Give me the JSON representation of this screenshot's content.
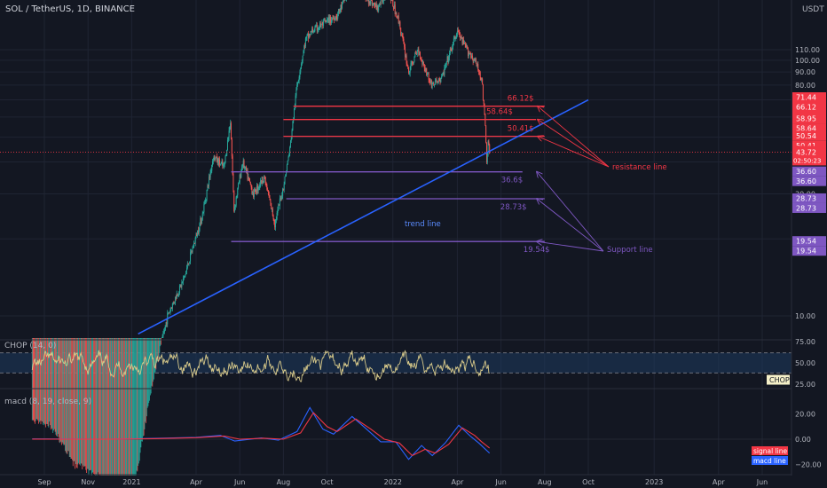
{
  "header": {
    "symbol": "SOL / TetherUS, 1D, BINANCE",
    "currency": "USDT"
  },
  "colors": {
    "background": "#131722",
    "grid": "#1f2433",
    "up": "#26a69a",
    "down": "#ef5350",
    "resistance": "#f23645",
    "support": "#7e57c2",
    "trend": "#2962ff",
    "chop": "#d7c98a",
    "macd": "#2962ff",
    "signal": "#f23645"
  },
  "x_axis": {
    "ticks": [
      "Sep",
      "Nov",
      "2021",
      "Apr",
      "Jun",
      "Aug",
      "Oct",
      "2022",
      "Apr",
      "Jun",
      "Aug",
      "Oct",
      "2023",
      "Apr",
      "Jun"
    ]
  },
  "chart_data": [
    {
      "type": "candlestick",
      "scale": "log",
      "y_ticks": [
        110,
        100,
        90,
        80,
        70,
        60,
        50,
        40,
        30,
        20,
        10
      ],
      "y_tick_labels": [
        "110.00",
        "100.00",
        "90.00",
        "80.00",
        "70.00",
        "60.00",
        "50.00",
        "40.00",
        "30.00",
        "20.00",
        "10.00"
      ],
      "ylim": [
        8,
        125
      ],
      "series_path": [
        {
          "t": "2020-08-15",
          "v": 3.8
        },
        {
          "t": "2020-09-10",
          "v": 3.6
        },
        {
          "t": "2020-10-10",
          "v": 2.6
        },
        {
          "t": "2020-11-15",
          "v": 2.3
        },
        {
          "t": "2020-12-10",
          "v": 1.8
        },
        {
          "t": "2021-01-01",
          "v": 1.8
        },
        {
          "t": "2021-01-25",
          "v": 4.5
        },
        {
          "t": "2021-02-20",
          "v": 10
        },
        {
          "t": "2021-03-15",
          "v": 14
        },
        {
          "t": "2021-04-10",
          "v": 25
        },
        {
          "t": "2021-04-25",
          "v": 42
        },
        {
          "t": "2021-05-10",
          "v": 38
        },
        {
          "t": "2021-05-19",
          "v": 58
        },
        {
          "t": "2021-05-24",
          "v": 26
        },
        {
          "t": "2021-06-05",
          "v": 40
        },
        {
          "t": "2021-06-20",
          "v": 30
        },
        {
          "t": "2021-07-05",
          "v": 35
        },
        {
          "t": "2021-07-20",
          "v": 23
        },
        {
          "t": "2021-08-01",
          "v": 32
        },
        {
          "t": "2021-08-10",
          "v": 45
        },
        {
          "t": "2021-08-20",
          "v": 80
        },
        {
          "t": "2021-09-01",
          "v": 120
        },
        {
          "t": "2021-09-10",
          "v": 130
        },
        {
          "t": "2021-10-15",
          "v": 150
        },
        {
          "t": "2021-11-06",
          "v": 200
        },
        {
          "t": "2021-12-10",
          "v": 160
        },
        {
          "t": "2021-12-25",
          "v": 190
        },
        {
          "t": "2022-01-10",
          "v": 140
        },
        {
          "t": "2022-01-23",
          "v": 90
        },
        {
          "t": "2022-02-05",
          "v": 110
        },
        {
          "t": "2022-02-24",
          "v": 80
        },
        {
          "t": "2022-03-10",
          "v": 85
        },
        {
          "t": "2022-04-01",
          "v": 130
        },
        {
          "t": "2022-04-10",
          "v": 115
        },
        {
          "t": "2022-04-25",
          "v": 100
        },
        {
          "t": "2022-05-05",
          "v": 85
        },
        {
          "t": "2022-05-10",
          "v": 55
        },
        {
          "t": "2022-05-12",
          "v": 40
        },
        {
          "t": "2022-05-14",
          "v": 48
        },
        {
          "t": "2022-05-16",
          "v": 43.72
        }
      ],
      "resistance_levels": [
        {
          "value": 66.12,
          "label": "66.12$",
          "from": "2021-08-15",
          "to": "2022-08-01"
        },
        {
          "value": 58.64,
          "label": "58.64$",
          "from": "2021-08-01",
          "to": "2022-07-20"
        },
        {
          "value": 50.41,
          "label": "50.41$",
          "from": "2021-08-01",
          "to": "2022-08-01"
        }
      ],
      "support_levels": [
        {
          "value": 36.6,
          "label": "36.6$",
          "from": "2021-05-20",
          "to": "2022-07-01"
        },
        {
          "value": 28.73,
          "label": "28.73$",
          "from": "2021-08-05",
          "to": "2022-08-01"
        },
        {
          "value": 19.54,
          "label": "19.54$",
          "from": "2021-05-20",
          "to": "2022-08-01"
        }
      ],
      "trend_line": {
        "label": "trend line",
        "from": {
          "t": "2021-01-10",
          "v": 8.5
        },
        "to": {
          "t": "2022-10-01",
          "v": 70
        }
      },
      "annotations": [
        {
          "text": "resistance line",
          "targets": [
            66.12,
            58.64,
            50.41
          ]
        },
        {
          "text": "Support line",
          "targets": [
            36.6,
            28.73,
            19.54
          ]
        }
      ],
      "price_labels": [
        {
          "value": 71.44,
          "text": "71.44",
          "kind": "resistance"
        },
        {
          "value": 66.12,
          "text": "66.12",
          "kind": "resistance"
        },
        {
          "value": 66.09,
          "text": "66.09",
          "kind": "resistance"
        },
        {
          "value": 58.95,
          "text": "58.95",
          "kind": "resistance"
        },
        {
          "value": 58.64,
          "text": "58.64",
          "kind": "resistance"
        },
        {
          "value": 50.54,
          "text": "50.54",
          "kind": "resistance"
        },
        {
          "value": 50.41,
          "text": "50.41",
          "kind": "resistance"
        },
        {
          "value": 36.6,
          "text": "36.60",
          "kind": "support"
        },
        {
          "value": 36.6,
          "text": "36.60",
          "kind": "support"
        },
        {
          "value": 28.73,
          "text": "28.73",
          "kind": "support"
        },
        {
          "value": 28.73,
          "text": "28.73",
          "kind": "support"
        },
        {
          "value": 19.54,
          "text": "19.54",
          "kind": "support"
        },
        {
          "value": 19.54,
          "text": "19.54",
          "kind": "support"
        }
      ],
      "current_price": {
        "value": 43.72,
        "text": "43.72",
        "countdown": "02:50:23"
      }
    },
    {
      "type": "line",
      "title": "CHOP (14, 0)",
      "y_ticks": [
        75,
        50,
        25
      ],
      "y_tick_labels": [
        "75.00",
        "50.00",
        "25.00"
      ],
      "ylim": [
        22,
        80
      ],
      "band": [
        38.2,
        61.8
      ],
      "mean": 48,
      "amplitude": 14,
      "last": {
        "value": 38,
        "text": "CHOP"
      }
    },
    {
      "type": "line",
      "title": "macd (8, 19, close, 9)",
      "y_ticks": [
        20,
        0,
        -20
      ],
      "y_tick_labels": [
        "20.00",
        "0.00",
        "−20.00"
      ],
      "ylim": [
        -24,
        28
      ],
      "series": [
        {
          "name": "macd line",
          "points": [
            {
              "t": "2020-08-15",
              "v": 0.2
            },
            {
              "t": "2020-12-01",
              "v": 0
            },
            {
              "t": "2021-02-01",
              "v": 0.6
            },
            {
              "t": "2021-04-01",
              "v": 1.5
            },
            {
              "t": "2021-05-05",
              "v": 3
            },
            {
              "t": "2021-05-25",
              "v": -1.5
            },
            {
              "t": "2021-07-01",
              "v": 1
            },
            {
              "t": "2021-07-25",
              "v": -0.8
            },
            {
              "t": "2021-08-20",
              "v": 6
            },
            {
              "t": "2021-09-07",
              "v": 25
            },
            {
              "t": "2021-09-25",
              "v": 8
            },
            {
              "t": "2021-10-10",
              "v": 4
            },
            {
              "t": "2021-11-05",
              "v": 18
            },
            {
              "t": "2021-11-25",
              "v": 8
            },
            {
              "t": "2021-12-15",
              "v": -2
            },
            {
              "t": "2022-01-05",
              "v": -2
            },
            {
              "t": "2022-01-23",
              "v": -16
            },
            {
              "t": "2022-02-10",
              "v": -5
            },
            {
              "t": "2022-02-25",
              "v": -13
            },
            {
              "t": "2022-03-15",
              "v": -3
            },
            {
              "t": "2022-04-03",
              "v": 11
            },
            {
              "t": "2022-04-20",
              "v": 2
            },
            {
              "t": "2022-05-01",
              "v": -3
            },
            {
              "t": "2022-05-16",
              "v": -11
            }
          ]
        },
        {
          "name": "signal line",
          "points": [
            {
              "t": "2020-08-15",
              "v": 0.1
            },
            {
              "t": "2020-12-01",
              "v": 0
            },
            {
              "t": "2021-02-01",
              "v": 0.4
            },
            {
              "t": "2021-04-01",
              "v": 1.2
            },
            {
              "t": "2021-05-10",
              "v": 2.5
            },
            {
              "t": "2021-06-01",
              "v": 0
            },
            {
              "t": "2021-07-05",
              "v": 0.8
            },
            {
              "t": "2021-08-01",
              "v": 0
            },
            {
              "t": "2021-08-25",
              "v": 5
            },
            {
              "t": "2021-09-12",
              "v": 21
            },
            {
              "t": "2021-10-01",
              "v": 10
            },
            {
              "t": "2021-10-15",
              "v": 6
            },
            {
              "t": "2021-11-10",
              "v": 16
            },
            {
              "t": "2021-12-01",
              "v": 8
            },
            {
              "t": "2021-12-20",
              "v": 0
            },
            {
              "t": "2022-01-10",
              "v": -3
            },
            {
              "t": "2022-01-28",
              "v": -13
            },
            {
              "t": "2022-02-15",
              "v": -8
            },
            {
              "t": "2022-03-01",
              "v": -11
            },
            {
              "t": "2022-03-20",
              "v": -4
            },
            {
              "t": "2022-04-08",
              "v": 9
            },
            {
              "t": "2022-04-25",
              "v": 3
            },
            {
              "t": "2022-05-05",
              "v": -2
            },
            {
              "t": "2022-05-16",
              "v": -7
            }
          ]
        }
      ]
    }
  ]
}
